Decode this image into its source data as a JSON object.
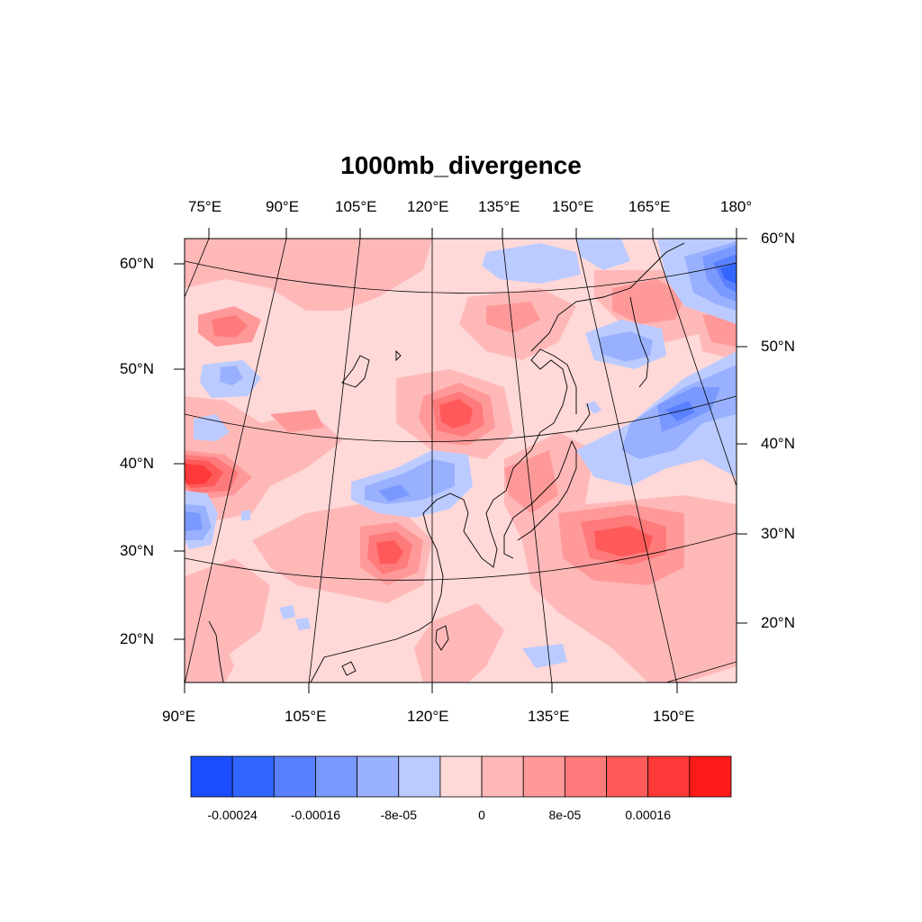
{
  "title": "1000mb_divergence",
  "axes": {
    "top_lon_labels": [
      "75°E",
      "90°E",
      "105°E",
      "120°E",
      "135°E",
      "150°E",
      "165°E",
      "180°"
    ],
    "bottom_lon_labels": [
      "90°E",
      "105°E",
      "120°E",
      "135°E",
      "150°E"
    ],
    "left_lat_labels": [
      "60°N",
      "50°N",
      "40°N",
      "30°N",
      "20°N"
    ],
    "right_lat_labels": [
      "60°N",
      "50°N",
      "40°N",
      "30°N",
      "20°N"
    ]
  },
  "colorbar": {
    "colors": [
      "#1a4dff",
      "#3366ff",
      "#5980ff",
      "#7a99ff",
      "#99b0ff",
      "#bccbff",
      "#ffd8d8",
      "#ffb8b8",
      "#ff9999",
      "#ff7a7a",
      "#ff5959",
      "#ff3838",
      "#ff1a1a"
    ],
    "labels": [
      "-0.00024",
      "-0.00016",
      "-8e-05",
      "0",
      "8e-05",
      "0.00016"
    ]
  },
  "chart_data": {
    "type": "heatmap",
    "title": "1000mb_divergence",
    "projection": "conic",
    "lon_range": [
      90,
      160
    ],
    "lat_range": [
      15,
      60
    ],
    "contour_levels": [
      -0.00028,
      -0.00024,
      -0.0002,
      -0.00016,
      -0.00012,
      -8e-05,
      -4e-05,
      0,
      4e-05,
      8e-05,
      0.00012,
      0.00016,
      0.0002,
      0.00024
    ],
    "features": [
      {
        "name": "positive max",
        "lon": 91,
        "lat": 40,
        "value": 0.00024
      },
      {
        "name": "positive max",
        "lon": 121,
        "lat": 45,
        "value": 0.00016
      },
      {
        "name": "positive max",
        "lon": 113,
        "lat": 30,
        "value": 0.00016
      },
      {
        "name": "positive max",
        "lon": 146,
        "lat": 30,
        "value": 0.00016
      },
      {
        "name": "negative min",
        "lon": 160,
        "lat": 57,
        "value": -0.00024
      },
      {
        "name": "negative min",
        "lon": 157,
        "lat": 42,
        "value": -0.00016
      },
      {
        "name": "negative min",
        "lon": 110,
        "lat": 37,
        "value": -8e-05
      },
      {
        "name": "negative min",
        "lon": 92,
        "lat": 34,
        "value": -8e-05
      }
    ]
  }
}
